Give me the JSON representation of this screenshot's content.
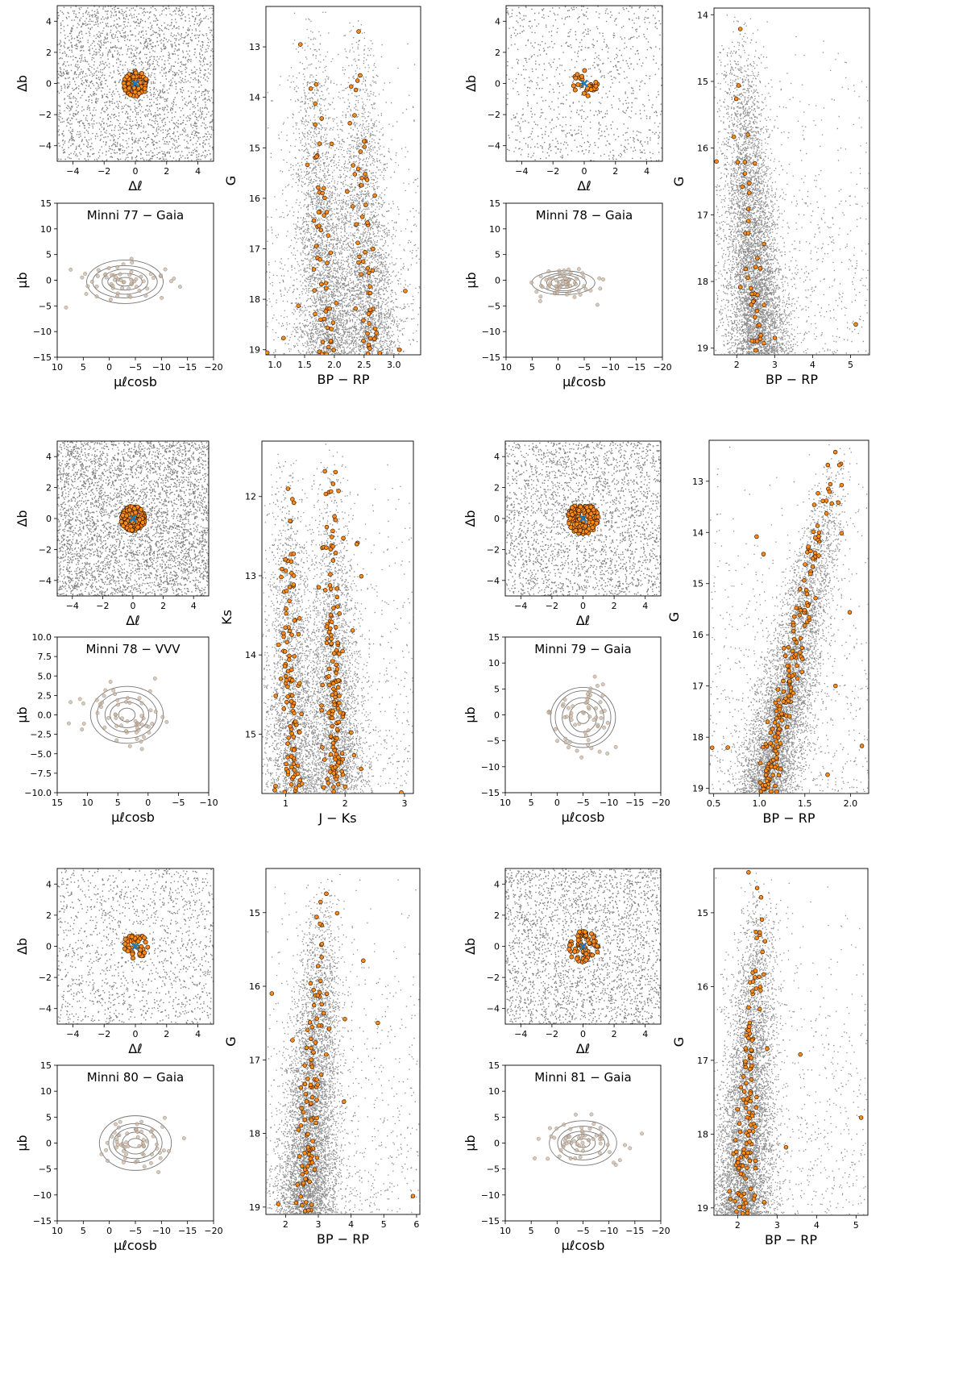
{
  "colors": {
    "field": "#808080",
    "member": "#ff8c1a",
    "member_edge": "#3a1d00",
    "center": "#1f77b4",
    "contour": "#777777",
    "pm_point": "#c8b4a0"
  },
  "chart_data": [
    {
      "cluster": "Minni 77",
      "spatial": {
        "type": "scatter",
        "xlabel": "Δℓ",
        "ylabel": "Δb",
        "xlim": [
          -5,
          5
        ],
        "ylim": [
          -5,
          5
        ],
        "xticks": [
          "−4",
          "−2",
          "0",
          "2",
          "4"
        ],
        "yticks": [
          "−4",
          "−2",
          "0",
          "2",
          "4"
        ],
        "field_density": "high",
        "member_radius": 0.8,
        "member_count": 110
      },
      "pm": {
        "type": "scatter",
        "title": "Minni 77 − Gaia",
        "xlabel": "μℓcosb",
        "ylabel": "μb",
        "xlim": [
          10,
          -20
        ],
        "ylim": [
          -15,
          15
        ],
        "xticks": [
          "10",
          "5",
          "0",
          "−5",
          "−10",
          "−15",
          "−20"
        ],
        "yticks": [
          "−15",
          "−10",
          "−5",
          "0",
          "5",
          "10",
          "15"
        ],
        "center": [
          -3,
          -0.3
        ],
        "sx": 5,
        "sy": 2.5
      },
      "cmd": {
        "type": "scatter",
        "xlabel": "BP − RP",
        "ylabel": "G",
        "xlim": [
          0.85,
          3.45
        ],
        "ylim": [
          12.2,
          19.1
        ],
        "xticks": [
          "1.0",
          "1.5",
          "2.0",
          "2.5",
          "3.0"
        ],
        "yticks": [
          "13",
          "14",
          "15",
          "16",
          "17",
          "18",
          "19"
        ],
        "shape": "double",
        "member_count": 120
      }
    },
    {
      "cluster": "Minni 78",
      "spatial": {
        "type": "scatter",
        "xlabel": "Δℓ",
        "ylabel": "Δb",
        "xlim": [
          -5,
          5
        ],
        "ylim": [
          -5,
          5
        ],
        "xticks": [
          "−4",
          "−2",
          "0",
          "2",
          "4"
        ],
        "yticks": [
          "−4",
          "−2",
          "0",
          "2",
          "4"
        ],
        "field_density": "low",
        "member_radius": 0.85,
        "member_count": 30
      },
      "pm": {
        "type": "scatter",
        "title": "Minni 78 − Gaia",
        "xlabel": "μℓcosb",
        "ylabel": "μb",
        "xlim": [
          10,
          -20
        ],
        "ylim": [
          -15,
          15
        ],
        "xticks": [
          "10",
          "5",
          "0",
          "−5",
          "−10",
          "−15",
          "−20"
        ],
        "yticks": [
          "−15",
          "−10",
          "−5",
          "0",
          "5",
          "10",
          "15"
        ],
        "center": [
          -1,
          -0.5
        ],
        "sx": 3.5,
        "sy": 1.6
      },
      "cmd": {
        "type": "scatter",
        "xlabel": "BP − RP",
        "ylabel": "G",
        "xlim": [
          1.4,
          5.5
        ],
        "ylim": [
          13.9,
          19.1
        ],
        "xticks": [
          "2",
          "3",
          "4",
          "5"
        ],
        "yticks": [
          "14",
          "15",
          "16",
          "17",
          "18",
          "19"
        ],
        "shape": "broad",
        "member_count": 45
      }
    },
    {
      "cluster": "Minni 78",
      "spatial": {
        "type": "scatter",
        "xlabel": "Δℓ",
        "ylabel": "Δb",
        "xlim": [
          -5,
          5
        ],
        "ylim": [
          -5,
          5
        ],
        "xticks": [
          "−4",
          "−2",
          "0",
          "2",
          "4"
        ],
        "yticks": [
          "−4",
          "−2",
          "0",
          "2",
          "4"
        ],
        "field_density": "veryhigh",
        "member_radius": 0.8,
        "member_count": 140
      },
      "pm": {
        "type": "scatter",
        "title": "Minni 78 − VVV",
        "xlabel": "μℓcosb",
        "ylabel": "μb",
        "xlim": [
          15,
          -10
        ],
        "ylim": [
          -10,
          10
        ],
        "xticks": [
          "15",
          "10",
          "5",
          "0",
          "−5",
          "−10"
        ],
        "yticks": [
          "−10.0",
          "−7.5",
          "−5.0",
          "−2.5",
          "0.0",
          "2.5",
          "5.0",
          "7.5",
          "10.0"
        ],
        "center": [
          3.5,
          0
        ],
        "sx": 4,
        "sy": 2.5
      },
      "cmd": {
        "type": "scatter",
        "xlabel": "J − Ks",
        "ylabel": "Ks",
        "xlim": [
          0.6,
          3.15
        ],
        "ylim": [
          11.3,
          15.75
        ],
        "xticks": [
          "1",
          "2",
          "3"
        ],
        "yticks": [
          "12",
          "13",
          "14",
          "15"
        ],
        "shape": "nir",
        "member_count": 260
      }
    },
    {
      "cluster": "Minni 79",
      "spatial": {
        "type": "scatter",
        "xlabel": "Δℓ",
        "ylabel": "Δb",
        "xlim": [
          -5,
          5
        ],
        "ylim": [
          -5,
          5
        ],
        "xticks": [
          "−4",
          "−2",
          "0",
          "2",
          "4"
        ],
        "yticks": [
          "−4",
          "−2",
          "0",
          "2",
          "4"
        ],
        "field_density": "high",
        "member_radius": 1.0,
        "member_count": 150
      },
      "pm": {
        "type": "scatter",
        "title": "Minni 79 − Gaia",
        "xlabel": "μℓcosb",
        "ylabel": "μb",
        "xlim": [
          10,
          -20
        ],
        "ylim": [
          -15,
          15
        ],
        "xticks": [
          "10",
          "5",
          "0",
          "−5",
          "−10",
          "−15",
          "−20"
        ],
        "yticks": [
          "−15",
          "−10",
          "−5",
          "0",
          "5",
          "10",
          "15"
        ],
        "center": [
          -5,
          -0.5
        ],
        "sx": 4,
        "sy": 4
      },
      "cmd": {
        "type": "scatter",
        "xlabel": "BP − RP",
        "ylabel": "G",
        "xlim": [
          0.45,
          2.2
        ],
        "ylim": [
          12.2,
          19.1
        ],
        "xticks": [
          "0.5",
          "1.0",
          "1.5",
          "2.0"
        ],
        "yticks": [
          "13",
          "14",
          "15",
          "16",
          "17",
          "18",
          "19"
        ],
        "shape": "diag",
        "member_count": 200
      }
    },
    {
      "cluster": "Minni 80",
      "spatial": {
        "type": "scatter",
        "xlabel": "Δℓ",
        "ylabel": "Δb",
        "xlim": [
          -5,
          5
        ],
        "ylim": [
          -5,
          5
        ],
        "xticks": [
          "−4",
          "−2",
          "0",
          "2",
          "4"
        ],
        "yticks": [
          "−4",
          "−2",
          "0",
          "2",
          "4"
        ],
        "field_density": "mid",
        "member_radius": 0.8,
        "member_count": 45
      },
      "pm": {
        "type": "scatter",
        "title": "Minni 80 − Gaia",
        "xlabel": "μℓcosb",
        "ylabel": "μb",
        "xlim": [
          10,
          -20
        ],
        "ylim": [
          -15,
          15
        ],
        "xticks": [
          "10",
          "5",
          "0",
          "−5",
          "−10",
          "−15",
          "−20"
        ],
        "yticks": [
          "−15",
          "−10",
          "−5",
          "0",
          "5",
          "10",
          "15"
        ],
        "center": [
          -5,
          0
        ],
        "sx": 4,
        "sy": 3
      },
      "cmd": {
        "type": "scatter",
        "xlabel": "BP − RP",
        "ylabel": "G",
        "xlim": [
          1.4,
          6.1
        ],
        "ylim": [
          14.4,
          19.1
        ],
        "xticks": [
          "2",
          "3",
          "4",
          "5",
          "6"
        ],
        "yticks": [
          "15",
          "16",
          "17",
          "18",
          "19"
        ],
        "shape": "narrow",
        "member_count": 110
      }
    },
    {
      "cluster": "Minni 81",
      "spatial": {
        "type": "scatter",
        "xlabel": "Δℓ",
        "ylabel": "Δb",
        "xlim": [
          -5,
          5
        ],
        "ylim": [
          -5,
          5
        ],
        "xticks": [
          "−4",
          "−2",
          "0",
          "2",
          "4"
        ],
        "yticks": [
          "−4",
          "−2",
          "0",
          "2",
          "4"
        ],
        "field_density": "high",
        "member_radius": 1.0,
        "member_count": 70
      },
      "pm": {
        "type": "scatter",
        "title": "Minni 81 − Gaia",
        "xlabel": "μℓcosb",
        "ylabel": "μb",
        "xlim": [
          10,
          -20
        ],
        "ylim": [
          -15,
          15
        ],
        "xticks": [
          "10",
          "5",
          "0",
          "−5",
          "−10",
          "−15",
          "−20"
        ],
        "yticks": [
          "−15",
          "−10",
          "−5",
          "0",
          "5",
          "10",
          "15"
        ],
        "center": [
          -5,
          0
        ],
        "sx": 4,
        "sy": 2.5
      },
      "cmd": {
        "type": "scatter",
        "xlabel": "BP − RP",
        "ylabel": "G",
        "xlim": [
          1.4,
          5.3
        ],
        "ylim": [
          14.4,
          19.1
        ],
        "xticks": [
          "2",
          "3",
          "4",
          "5"
        ],
        "yticks": [
          "15",
          "16",
          "17",
          "18",
          "19"
        ],
        "shape": "narrow2",
        "member_count": 130
      }
    }
  ]
}
